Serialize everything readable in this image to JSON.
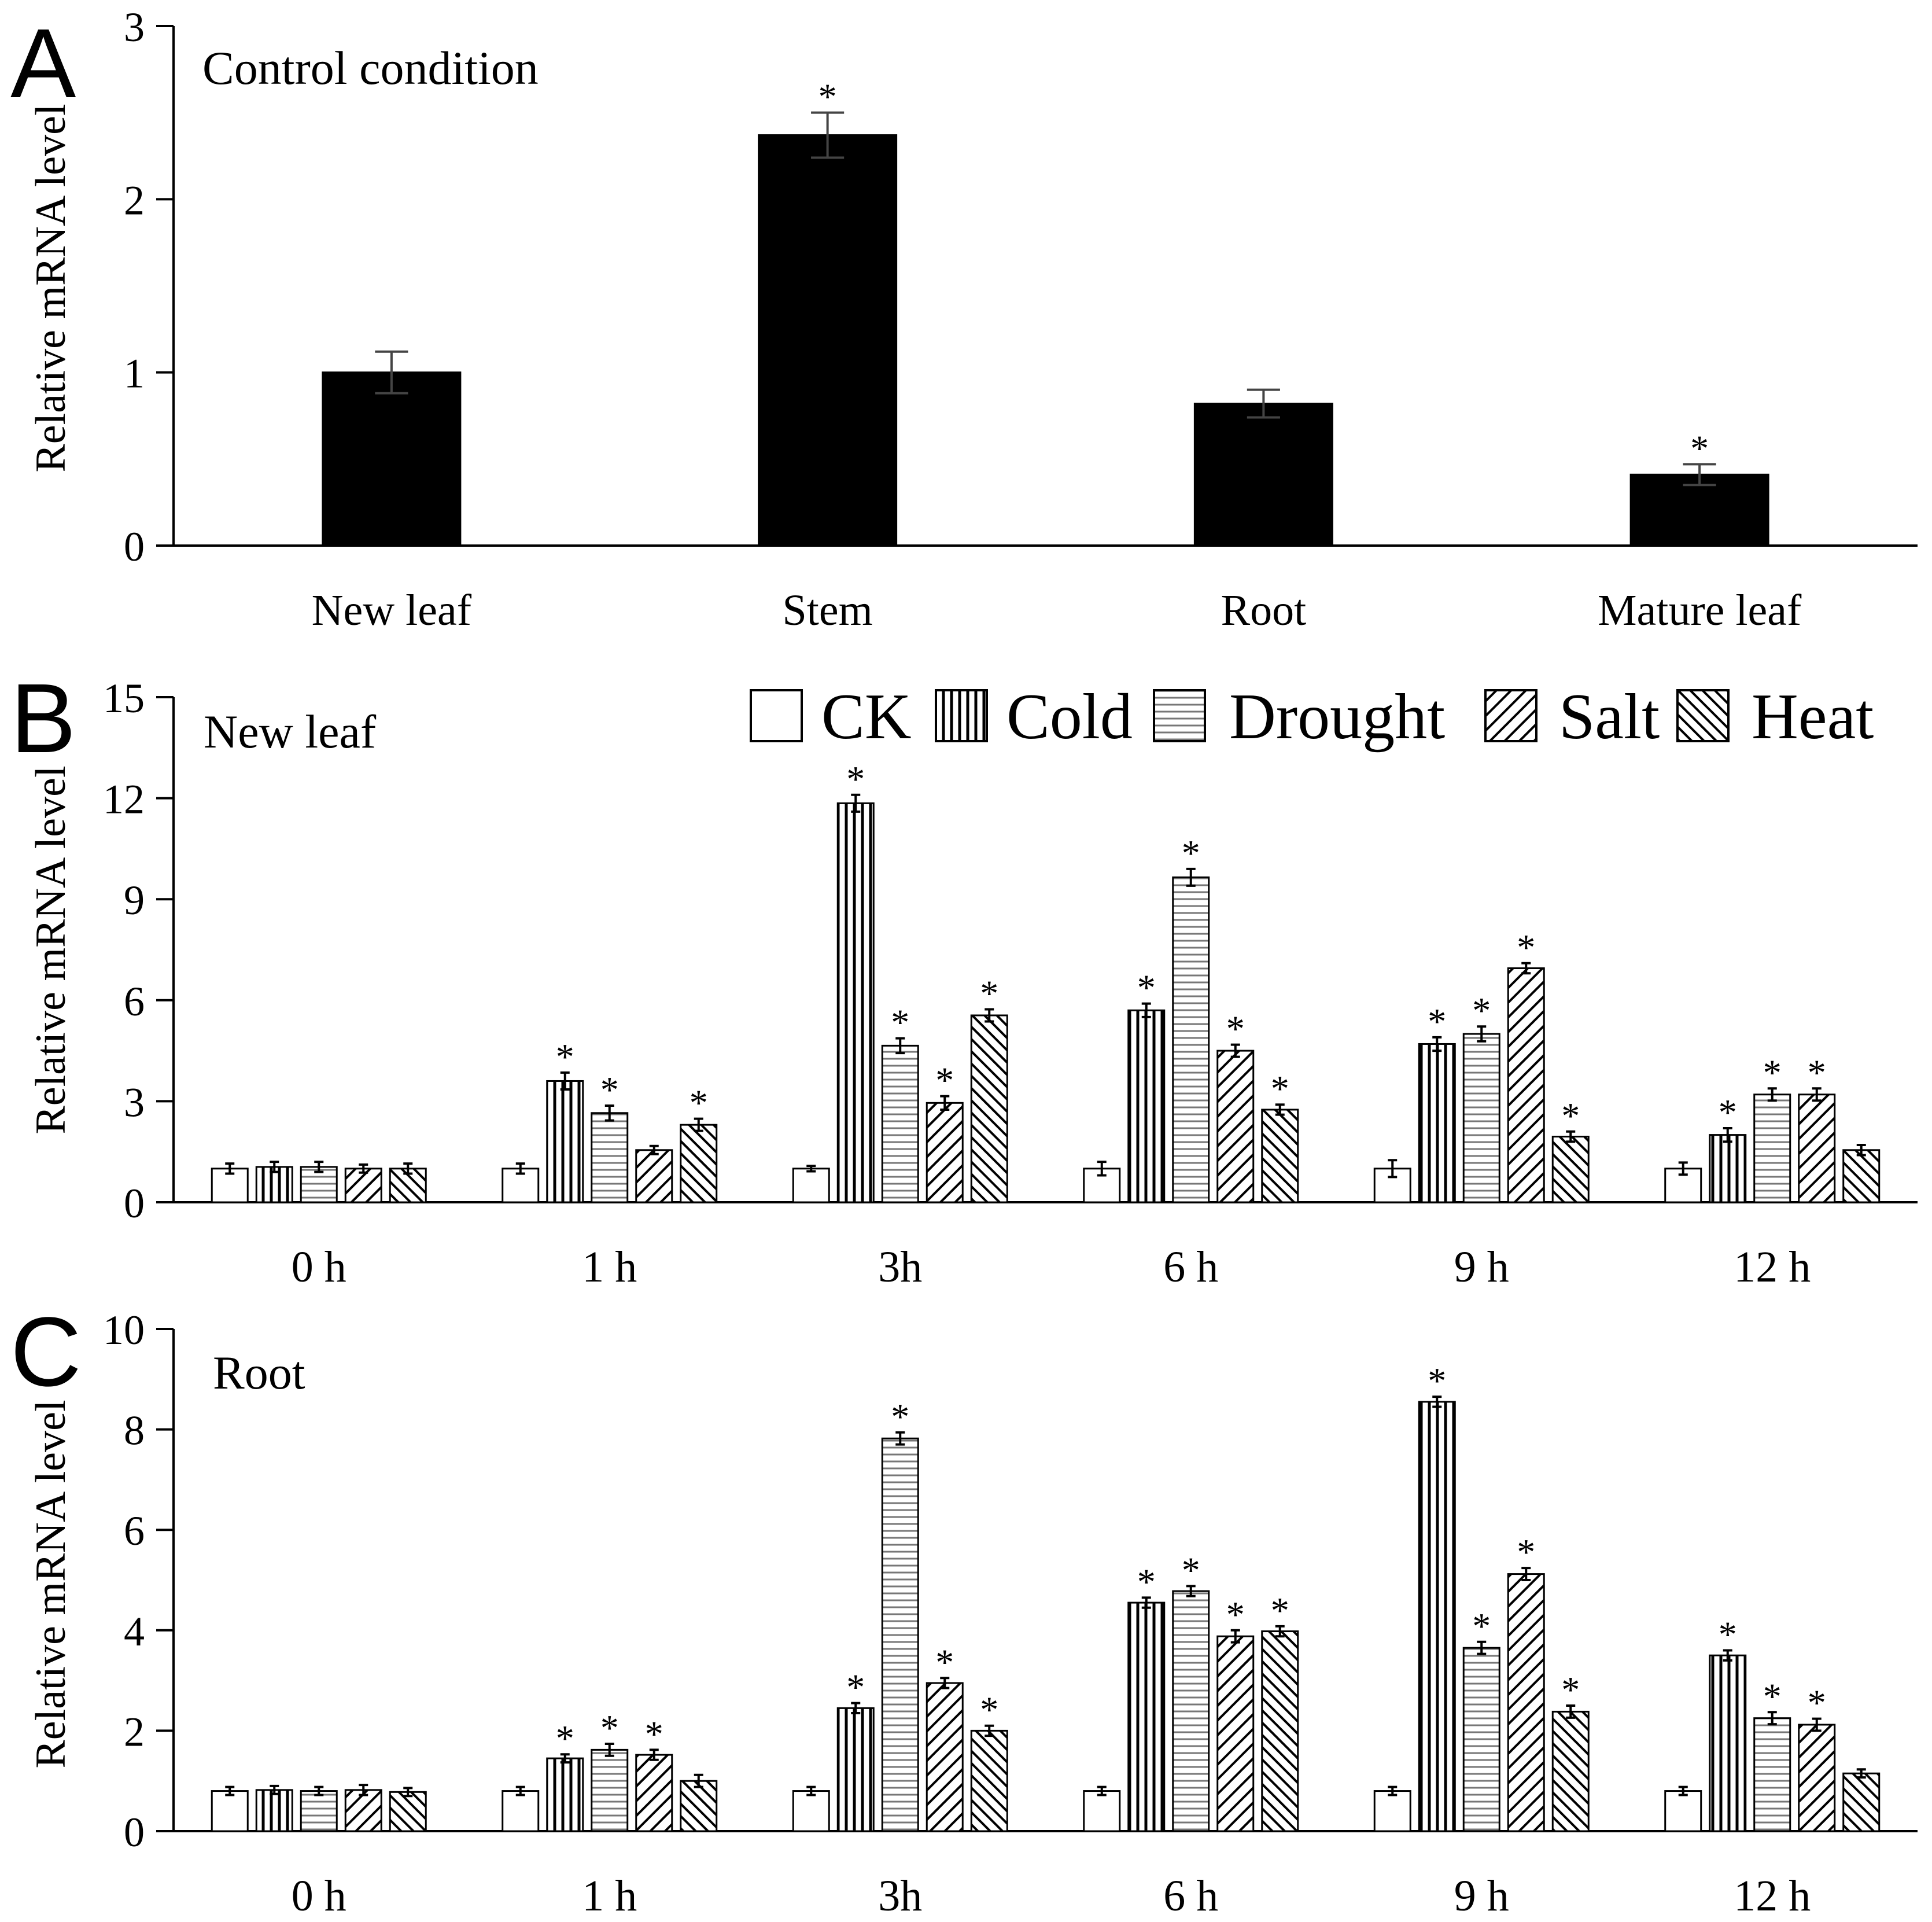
{
  "chart_data": [
    {
      "panel": "A",
      "type": "bar",
      "title": "Control condition",
      "ylabel": "Relative mRNA level",
      "xlabel": "",
      "ylim": [
        0,
        3
      ],
      "yticks": [
        0,
        1,
        2,
        3
      ],
      "categories": [
        "New leaf",
        "Stem",
        "Root",
        "Mature leaf"
      ],
      "values": [
        1.0,
        2.37,
        0.82,
        0.41
      ],
      "errors": [
        0.12,
        0.13,
        0.08,
        0.06
      ],
      "significant": [
        false,
        true,
        false,
        true
      ],
      "star_label": "*"
    },
    {
      "panel": "B",
      "type": "bar",
      "title": "New leaf",
      "ylabel": "Relative mRNA level",
      "xlabel": "",
      "ylim": [
        0,
        15
      ],
      "yticks": [
        0,
        3,
        6,
        9,
        12,
        15
      ],
      "categories": [
        "0 h",
        "1 h",
        "3h",
        "6 h",
        "9 h",
        "12 h"
      ],
      "series": [
        {
          "name": "CK",
          "pattern": "ck",
          "values": [
            1.0,
            1.0,
            1.0,
            1.0,
            1.0,
            1.0
          ],
          "errors": [
            0.15,
            0.15,
            0.08,
            0.2,
            0.25,
            0.18
          ],
          "significant": [
            false,
            false,
            false,
            false,
            false,
            false
          ]
        },
        {
          "name": "Cold",
          "pattern": "cold",
          "values": [
            1.05,
            3.6,
            11.85,
            5.7,
            4.7,
            2.0
          ],
          "errors": [
            0.15,
            0.25,
            0.25,
            0.2,
            0.2,
            0.2
          ],
          "significant": [
            false,
            true,
            true,
            true,
            true,
            true
          ]
        },
        {
          "name": "Drought",
          "pattern": "drought",
          "values": [
            1.05,
            2.65,
            4.65,
            9.65,
            5.0,
            3.2
          ],
          "errors": [
            0.15,
            0.22,
            0.22,
            0.25,
            0.22,
            0.18
          ],
          "significant": [
            false,
            true,
            true,
            true,
            true,
            true
          ]
        },
        {
          "name": "Salt",
          "pattern": "salt",
          "values": [
            1.0,
            1.55,
            2.95,
            4.5,
            6.95,
            3.2
          ],
          "errors": [
            0.12,
            0.12,
            0.2,
            0.18,
            0.15,
            0.18
          ],
          "significant": [
            false,
            false,
            true,
            true,
            true,
            true
          ]
        },
        {
          "name": "Heat",
          "pattern": "heat",
          "values": [
            1.0,
            2.3,
            5.55,
            2.75,
            1.95,
            1.55
          ],
          "errors": [
            0.15,
            0.18,
            0.18,
            0.15,
            0.15,
            0.15
          ],
          "significant": [
            false,
            true,
            true,
            true,
            true,
            false
          ]
        }
      ],
      "star_label": "*"
    },
    {
      "panel": "C",
      "type": "bar",
      "title": "Root",
      "ylabel": "Relative mRNA level",
      "xlabel": "",
      "ylim": [
        0,
        10
      ],
      "yticks": [
        0,
        2,
        4,
        6,
        8,
        10
      ],
      "categories": [
        "0 h",
        "1 h",
        "3h",
        "6 h",
        "9 h",
        "12 h"
      ],
      "series": [
        {
          "name": "CK",
          "pattern": "ck",
          "values": [
            0.8,
            0.8,
            0.8,
            0.8,
            0.8,
            0.8
          ],
          "errors": [
            0.08,
            0.08,
            0.08,
            0.08,
            0.08,
            0.08
          ],
          "significant": [
            false,
            false,
            false,
            false,
            false,
            false
          ]
        },
        {
          "name": "Cold",
          "pattern": "cold",
          "values": [
            0.82,
            1.45,
            2.45,
            4.55,
            8.55,
            3.5
          ],
          "errors": [
            0.08,
            0.08,
            0.1,
            0.1,
            0.1,
            0.1
          ],
          "significant": [
            false,
            true,
            true,
            true,
            true,
            true
          ]
        },
        {
          "name": "Drought",
          "pattern": "drought",
          "values": [
            0.8,
            1.62,
            7.82,
            4.78,
            3.65,
            2.25
          ],
          "errors": [
            0.08,
            0.12,
            0.12,
            0.1,
            0.12,
            0.12
          ],
          "significant": [
            false,
            true,
            true,
            true,
            true,
            true
          ]
        },
        {
          "name": "Salt",
          "pattern": "salt",
          "values": [
            0.82,
            1.52,
            2.95,
            3.88,
            5.12,
            2.12
          ],
          "errors": [
            0.1,
            0.1,
            0.1,
            0.12,
            0.12,
            0.12
          ],
          "significant": [
            false,
            true,
            true,
            true,
            true,
            true
          ]
        },
        {
          "name": "Heat",
          "pattern": "heat",
          "values": [
            0.78,
            1.0,
            2.0,
            3.98,
            2.38,
            1.15
          ],
          "errors": [
            0.08,
            0.12,
            0.1,
            0.1,
            0.12,
            0.08
          ],
          "significant": [
            false,
            false,
            true,
            true,
            true,
            false
          ]
        }
      ],
      "star_label": "*"
    }
  ],
  "legend": [
    "CK",
    "Cold",
    "Drought",
    "Salt",
    "Heat"
  ],
  "panel_letters": [
    "A",
    "B",
    "C"
  ]
}
